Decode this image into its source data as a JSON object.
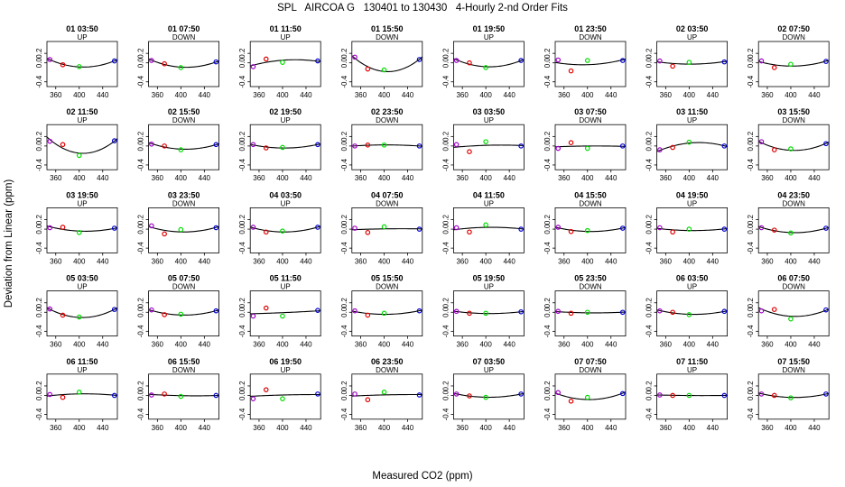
{
  "header": {
    "site": "SPL",
    "system": "AIRCOA G",
    "range": "130401 to 130430",
    "description": "4-Hourly 2-nd Order Fits"
  },
  "axes": {
    "xlabel": "Measured CO2 (ppm)",
    "ylabel": "Deviation from Linear (ppm)"
  },
  "colors": {
    "curve": "#000000",
    "low_std": "#a000c8",
    "mid_low_std": "#e00000",
    "mid_std": "#00dd00",
    "high_std": "#0000cc"
  },
  "chart_data": {
    "type": "scatter",
    "panel_layout": {
      "rows": 5,
      "cols": 8
    },
    "xlim": [
      345,
      465
    ],
    "ylim": [
      -0.5,
      0.45
    ],
    "xticks": [
      360,
      400,
      440
    ],
    "xtick_labels": [
      "360",
      "400",
      "440"
    ],
    "yticks": [
      -0.4,
      0,
      0.2
    ],
    "ytick_labels": [
      "-0.4",
      "0.0",
      "0.2"
    ],
    "standards_x": [
      350,
      372,
      400,
      460
    ],
    "series_colors": [
      "#a000c8",
      "#e00000",
      "#00dd00",
      "#0000cc"
    ],
    "panels": [
      {
        "title": "01 03:50",
        "direction": "UP",
        "y": [
          0.07,
          -0.04,
          -0.08,
          0.04
        ]
      },
      {
        "title": "01 07:50",
        "direction": "DOWN",
        "y": [
          0.05,
          -0.02,
          -0.1,
          0.02
        ]
      },
      {
        "title": "01 11:50",
        "direction": "UP",
        "y": [
          -0.08,
          0.08,
          0.01,
          0.04
        ]
      },
      {
        "title": "01 15:50",
        "direction": "DOWN",
        "y": [
          0.12,
          -0.13,
          -0.15,
          0.07
        ]
      },
      {
        "title": "01 19:50",
        "direction": "UP",
        "y": [
          0.05,
          0.0,
          -0.1,
          0.05
        ]
      },
      {
        "title": "01 23:50",
        "direction": "DOWN",
        "y": [
          0.06,
          -0.17,
          0.05,
          0.05
        ]
      },
      {
        "title": "02 03:50",
        "direction": "UP",
        "y": [
          0.04,
          -0.07,
          0.01,
          0.02
        ]
      },
      {
        "title": "02 07:50",
        "direction": "DOWN",
        "y": [
          0.04,
          -0.1,
          -0.03,
          0.03
        ]
      },
      {
        "title": "02 11:50",
        "direction": "UP",
        "y": [
          0.1,
          0.03,
          -0.2,
          0.11
        ]
      },
      {
        "title": "02 15:50",
        "direction": "DOWN",
        "y": [
          0.04,
          0.0,
          -0.08,
          0.03
        ]
      },
      {
        "title": "02 19:50",
        "direction": "UP",
        "y": [
          0.03,
          -0.04,
          -0.03,
          0.03
        ]
      },
      {
        "title": "02 23:50",
        "direction": "DOWN",
        "y": [
          0.0,
          0.02,
          0.02,
          0.0
        ]
      },
      {
        "title": "03 03:50",
        "direction": "UP",
        "y": [
          0.03,
          -0.12,
          0.09,
          0.0
        ]
      },
      {
        "title": "03 07:50",
        "direction": "DOWN",
        "y": [
          -0.05,
          0.07,
          -0.05,
          0.0
        ]
      },
      {
        "title": "03 11:50",
        "direction": "UP",
        "y": [
          -0.08,
          -0.03,
          0.08,
          0.0
        ]
      },
      {
        "title": "03 15:50",
        "direction": "DOWN",
        "y": [
          0.09,
          -0.08,
          -0.06,
          0.05
        ]
      },
      {
        "title": "03 19:50",
        "direction": "UP",
        "y": [
          0.03,
          0.04,
          -0.07,
          0.02
        ]
      },
      {
        "title": "03 23:50",
        "direction": "DOWN",
        "y": [
          0.07,
          -0.1,
          -0.01,
          0.03
        ]
      },
      {
        "title": "04 03:50",
        "direction": "UP",
        "y": [
          0.04,
          -0.06,
          -0.04,
          0.04
        ]
      },
      {
        "title": "04 07:50",
        "direction": "DOWN",
        "y": [
          0.02,
          -0.07,
          0.05,
          0.0
        ]
      },
      {
        "title": "04 11:50",
        "direction": "UP",
        "y": [
          0.03,
          -0.06,
          0.09,
          0.0
        ]
      },
      {
        "title": "04 15:50",
        "direction": "DOWN",
        "y": [
          0.04,
          -0.05,
          -0.03,
          0.02
        ]
      },
      {
        "title": "04 19:50",
        "direction": "UP",
        "y": [
          0.03,
          -0.06,
          0.0,
          0.0
        ]
      },
      {
        "title": "04 23:50",
        "direction": "DOWN",
        "y": [
          0.03,
          -0.02,
          -0.08,
          0.02
        ]
      },
      {
        "title": "05 03:50",
        "direction": "UP",
        "y": [
          0.07,
          -0.06,
          -0.1,
          0.06
        ]
      },
      {
        "title": "05 07:50",
        "direction": "DOWN",
        "y": [
          0.05,
          -0.05,
          -0.04,
          0.03
        ]
      },
      {
        "title": "05 11:50",
        "direction": "UP",
        "y": [
          -0.08,
          0.09,
          -0.08,
          0.04
        ]
      },
      {
        "title": "05 15:50",
        "direction": "DOWN",
        "y": [
          0.03,
          -0.06,
          -0.02,
          0.03
        ]
      },
      {
        "title": "05 19:50",
        "direction": "UP",
        "y": [
          0.02,
          -0.02,
          -0.02,
          0.01
        ]
      },
      {
        "title": "05 23:50",
        "direction": "DOWN",
        "y": [
          0.02,
          -0.02,
          0.0,
          0.0
        ]
      },
      {
        "title": "06 03:50",
        "direction": "UP",
        "y": [
          0.03,
          0.0,
          -0.05,
          0.02
        ]
      },
      {
        "title": "06 07:50",
        "direction": "DOWN",
        "y": [
          0.03,
          0.06,
          -0.14,
          0.05
        ]
      },
      {
        "title": "06 11:50",
        "direction": "UP",
        "y": [
          0.02,
          -0.04,
          0.07,
          0.0
        ]
      },
      {
        "title": "06 15:50",
        "direction": "DOWN",
        "y": [
          0.01,
          0.03,
          -0.02,
          0.0
        ]
      },
      {
        "title": "06 19:50",
        "direction": "UP",
        "y": [
          -0.07,
          0.12,
          -0.07,
          0.03
        ]
      },
      {
        "title": "06 23:50",
        "direction": "DOWN",
        "y": [
          0.03,
          -0.09,
          0.07,
          0.01
        ]
      },
      {
        "title": "07 03:50",
        "direction": "UP",
        "y": [
          0.03,
          -0.01,
          -0.04,
          0.03
        ]
      },
      {
        "title": "07 07:50",
        "direction": "DOWN",
        "y": [
          0.06,
          -0.12,
          -0.04,
          0.04
        ]
      },
      {
        "title": "07 11:50",
        "direction": "UP",
        "y": [
          0.01,
          0.0,
          0.0,
          0.0
        ]
      },
      {
        "title": "07 15:50",
        "direction": "DOWN",
        "y": [
          0.03,
          0.0,
          -0.05,
          0.03
        ]
      }
    ]
  }
}
